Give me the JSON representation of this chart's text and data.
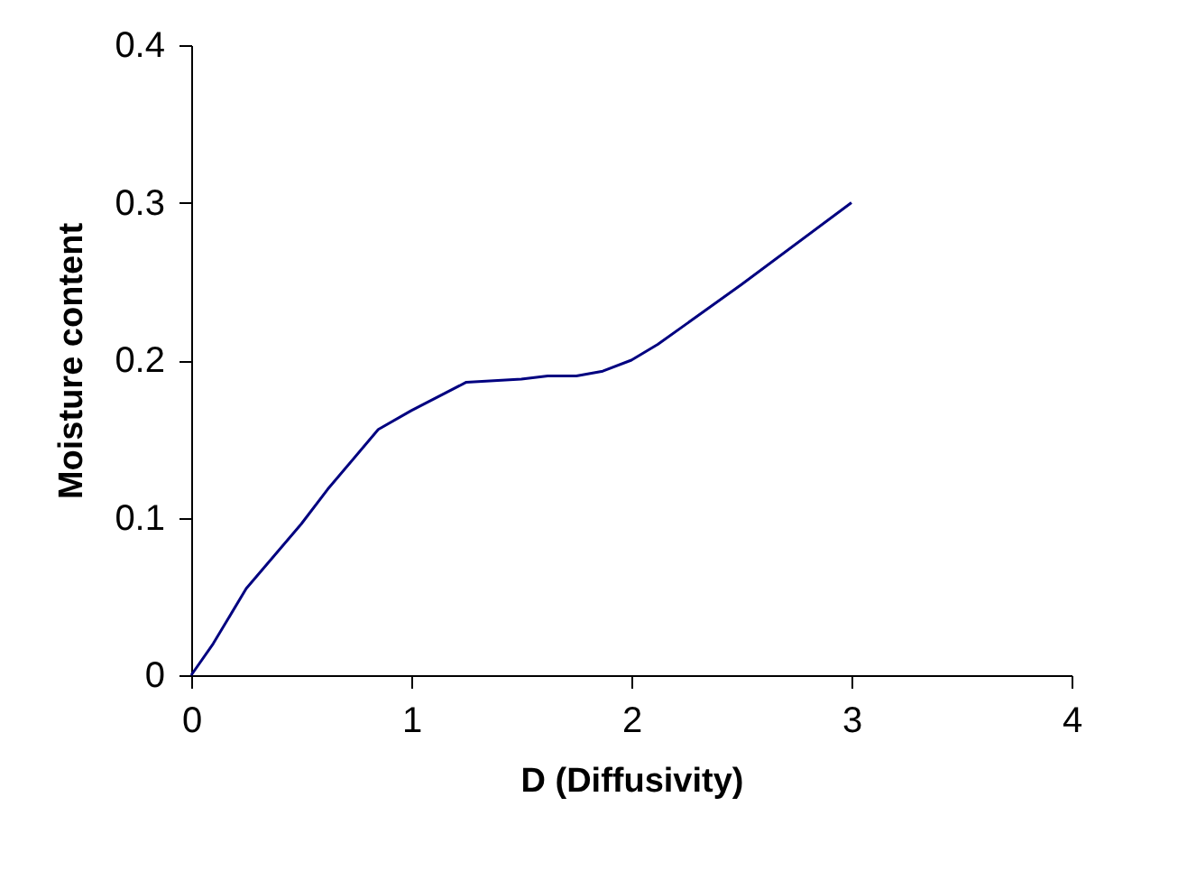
{
  "chart_data": {
    "type": "line",
    "xlabel": "D (Diffusivity)",
    "ylabel": "Moisture content",
    "x": [
      0,
      0.1,
      0.25,
      0.5,
      0.62,
      0.85,
      1,
      1.25,
      1.5,
      1.62,
      1.75,
      1.87,
      2,
      2.12,
      2.5,
      3
    ],
    "series": [
      {
        "color": "#000080",
        "values": [
          0,
          0.02,
          0.055,
          0.096,
          0.118,
          0.156,
          0.168,
          0.186,
          0.188,
          0.19,
          0.19,
          0.193,
          0.2,
          0.21,
          0.248,
          0.3
        ]
      }
    ],
    "xlim": [
      0,
      4
    ],
    "xticks": [
      0,
      1,
      2,
      3,
      4
    ],
    "ylim": [
      0,
      0.4
    ],
    "yticks": [
      0,
      0.1,
      0.2,
      0.3,
      0.4
    ],
    "grid": false,
    "marker": "none",
    "line_style": "solid"
  }
}
